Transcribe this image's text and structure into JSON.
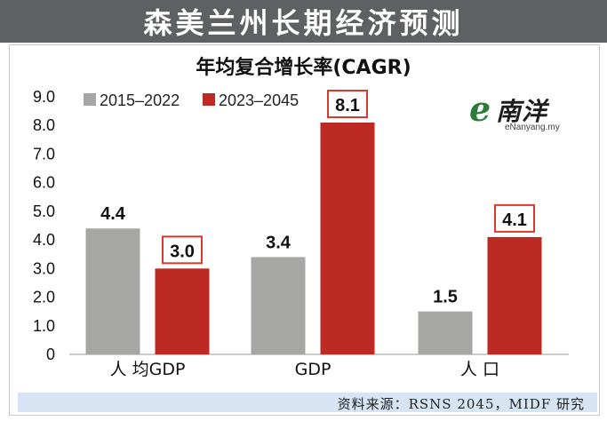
{
  "header": {
    "title": "森美兰州长期经济预测"
  },
  "source": {
    "text": "资料来源：RSNS 2045，MIDF 研究"
  },
  "logo": {
    "mark": "e",
    "name_cn": "南洋",
    "site": "eNanyang.my"
  },
  "colors": {
    "series_2015_2022": "#a6a6a4",
    "series_2023_2045": "#bd2a24",
    "highlight_box": "#d93b2b",
    "banner": "#5f6062",
    "source_bar": "#d6e4f3"
  },
  "chart_data": {
    "type": "bar",
    "title": "年均复合增长率(CAGR)",
    "categories": [
      "人 均GDP",
      "GDP",
      "人 口"
    ],
    "series": [
      {
        "name": "2015–2022",
        "values": [
          4.4,
          3.4,
          1.5
        ]
      },
      {
        "name": "2023–2045",
        "values": [
          3.0,
          8.1,
          4.1
        ]
      }
    ],
    "data_labels": [
      [
        "4.4",
        "3.4",
        "1.5"
      ],
      [
        "3.0",
        "8.1",
        "4.1"
      ]
    ],
    "boxed_series": 1,
    "ylim": [
      0,
      9.0
    ],
    "yticks": [
      "0",
      "1.0",
      "2.0",
      "3.0",
      "4.0",
      "5.0",
      "6.0",
      "7.0",
      "8.0",
      "9.0"
    ],
    "grid": false,
    "legend": "top-left"
  }
}
